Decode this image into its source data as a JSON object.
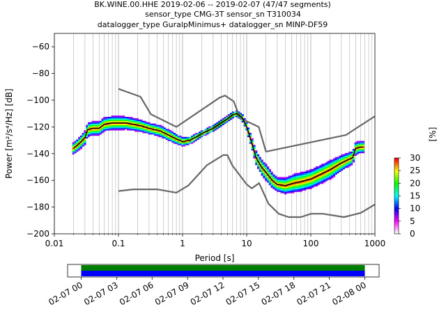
{
  "title_lines": [
    "BK.WINE.00.HHE   2019-02-06 -- 2019-02-07  (47/47 segments)",
    "sensor_type CMG-3T sensor_sn T310034",
    "datalogger_type GuralpMinimus+ datalogger_sn MINP-DF59"
  ],
  "chart_data": {
    "type": "heatmap",
    "xlabel": "Period [s]",
    "ylabel": "Power [m²/s⁴/Hz] [dB]",
    "xscale": "log",
    "xlim": [
      0.01,
      1000
    ],
    "ylim": [
      -200,
      -50
    ],
    "x_ticks": [
      0.01,
      0.1,
      1,
      10,
      100,
      1000
    ],
    "x_tick_labels": [
      "0.01",
      "0.1",
      "1",
      "10",
      "100",
      "1000"
    ],
    "y_ticks": [
      -200,
      -180,
      -160,
      -140,
      -120,
      -100,
      -80,
      -60
    ],
    "y_tick_labels": [
      "−200",
      "−180",
      "−160",
      "−140",
      "−120",
      "−100",
      "−80",
      "−60"
    ],
    "grid": "vertical",
    "colorbar": {
      "label": "[%]",
      "range": [
        0,
        30
      ],
      "ticks": [
        0,
        5,
        10,
        15,
        20,
        25,
        30
      ],
      "tick_labels": [
        "0",
        "5",
        "10",
        "15",
        "20",
        "25",
        "30"
      ],
      "colormap": [
        "#ffffff",
        "#ff00ff",
        "#0000ff",
        "#00ffff",
        "#00ff00",
        "#ffff00",
        "#ff0000"
      ]
    },
    "mode_curve": [
      [
        0.02,
        -136
      ],
      [
        0.025,
        -132
      ],
      [
        0.03,
        -128
      ],
      [
        0.033,
        -122
      ],
      [
        0.04,
        -121
      ],
      [
        0.05,
        -121
      ],
      [
        0.06,
        -118
      ],
      [
        0.08,
        -117
      ],
      [
        0.1,
        -117
      ],
      [
        0.13,
        -117
      ],
      [
        0.17,
        -118
      ],
      [
        0.22,
        -119
      ],
      [
        0.3,
        -121
      ],
      [
        0.45,
        -123
      ],
      [
        0.6,
        -126
      ],
      [
        0.8,
        -129
      ],
      [
        1.0,
        -131
      ],
      [
        1.3,
        -130
      ],
      [
        1.7,
        -127
      ],
      [
        2.2,
        -124
      ],
      [
        3,
        -121
      ],
      [
        4,
        -117
      ],
      [
        5,
        -114
      ],
      [
        6,
        -111
      ],
      [
        7,
        -110
      ],
      [
        8.5,
        -113
      ],
      [
        10,
        -120
      ],
      [
        12,
        -132
      ],
      [
        14,
        -143
      ],
      [
        17,
        -150
      ],
      [
        20,
        -154
      ],
      [
        25,
        -160
      ],
      [
        30,
        -163
      ],
      [
        40,
        -164
      ],
      [
        55,
        -162
      ],
      [
        70,
        -161
      ],
      [
        100,
        -159
      ],
      [
        150,
        -155
      ],
      [
        200,
        -152
      ],
      [
        300,
        -147
      ],
      [
        400,
        -144
      ],
      [
        450,
        -143
      ],
      [
        500,
        -136
      ],
      [
        600,
        -135
      ],
      [
        650,
        -135
      ]
    ],
    "noise_models": {
      "high": [
        [
          0.1,
          -91.5
        ],
        [
          0.22,
          -97.4
        ],
        [
          0.32,
          -110.5
        ],
        [
          0.8,
          -120
        ],
        [
          3.8,
          -98
        ],
        [
          4.6,
          -96.5
        ],
        [
          6.3,
          -101
        ],
        [
          7.9,
          -113.5
        ],
        [
          15.4,
          -120
        ],
        [
          20,
          -138.5
        ],
        [
          354.8,
          -126
        ],
        [
          1000,
          -112
        ]
      ],
      "low": [
        [
          0.1,
          -168
        ],
        [
          0.17,
          -166.7
        ],
        [
          0.4,
          -166.7
        ],
        [
          0.8,
          -169.2
        ],
        [
          1.24,
          -163.7
        ],
        [
          2.4,
          -148.6
        ],
        [
          4.3,
          -141.1
        ],
        [
          5.0,
          -141.1
        ],
        [
          6.0,
          -149
        ],
        [
          10,
          -163
        ],
        [
          12,
          -166
        ],
        [
          15.6,
          -162.1
        ],
        [
          21.9,
          -177.5
        ],
        [
          31.6,
          -185
        ],
        [
          45,
          -187.5
        ],
        [
          70,
          -187.5
        ],
        [
          101,
          -185
        ],
        [
          154,
          -185
        ],
        [
          328,
          -187.5
        ],
        [
          600,
          -184.4
        ],
        [
          1000,
          -178
        ]
      ]
    },
    "band_half_width": [
      [
        0.02,
        4
      ],
      [
        0.03,
        5
      ],
      [
        0.05,
        5
      ],
      [
        0.1,
        5
      ],
      [
        0.3,
        4
      ],
      [
        0.6,
        4
      ],
      [
        1.0,
        3
      ],
      [
        2,
        2
      ],
      [
        4,
        2
      ],
      [
        7,
        2
      ],
      [
        10,
        3
      ],
      [
        14,
        5
      ],
      [
        20,
        6
      ],
      [
        30,
        5
      ],
      [
        60,
        7
      ],
      [
        100,
        7
      ],
      [
        200,
        7
      ],
      [
        400,
        5
      ],
      [
        650,
        4
      ]
    ]
  },
  "time_axis": {
    "tick_labels": [
      "02-07 00",
      "02-07 03",
      "02-07 06",
      "02-07 09",
      "02-07 12",
      "02-07 15",
      "02-07 18",
      "02-07 21",
      "02-08 00"
    ],
    "bar_colors": [
      "#008000",
      "#0000ff"
    ]
  }
}
